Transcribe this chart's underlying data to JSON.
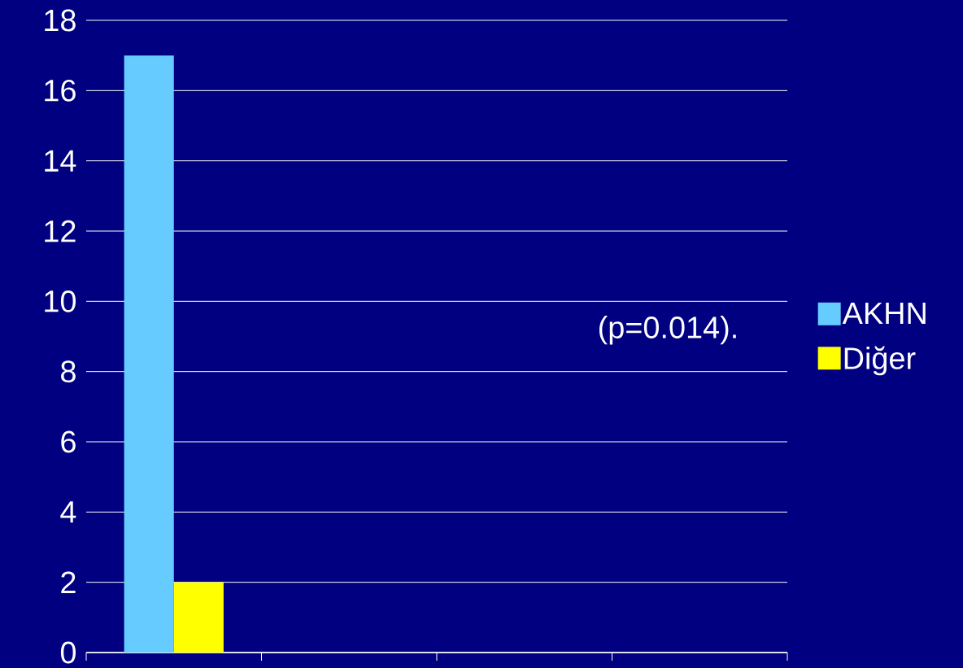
{
  "chart_data": {
    "type": "bar",
    "categories": [
      null,
      null,
      null,
      null
    ],
    "series": [
      {
        "name": "AKHN",
        "color": "#66ccff",
        "values": [
          17,
          null,
          null,
          null
        ]
      },
      {
        "name": "Diğer",
        "color": "#ffff00",
        "values": [
          2,
          null,
          null,
          null
        ]
      }
    ],
    "ylim": [
      0,
      18
    ],
    "yticks": [
      0,
      2,
      4,
      6,
      8,
      10,
      12,
      14,
      16,
      18
    ],
    "grid": "y",
    "legend": "right",
    "annotations": [
      "(p=0.014)."
    ]
  }
}
